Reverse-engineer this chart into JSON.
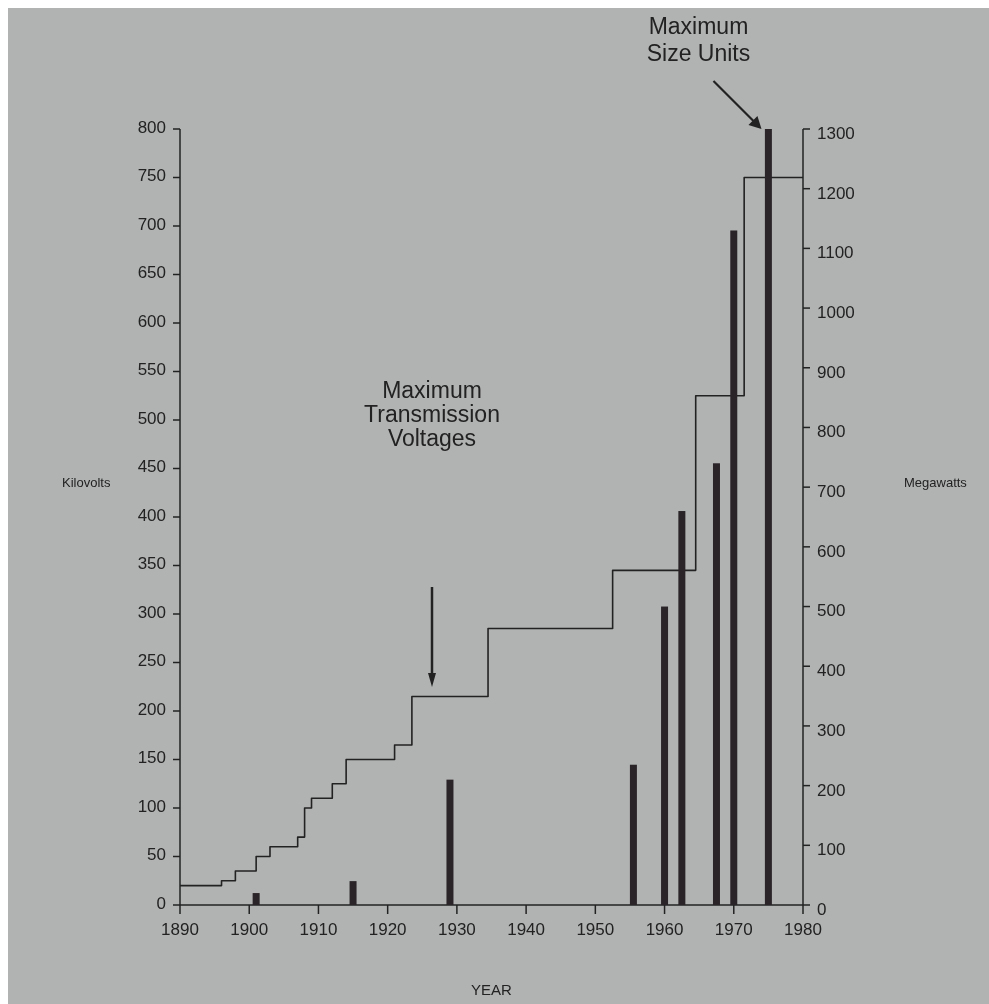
{
  "chart_data": {
    "type": "step",
    "xlabel": "YEAR",
    "ylabel": "Kilovolts",
    "y2label": "Megawatts",
    "xlim": [
      1890,
      1980
    ],
    "xticks": [
      1890,
      1900,
      1910,
      1920,
      1930,
      1940,
      1950,
      1960,
      1970,
      1980
    ],
    "ylim": [
      0,
      800
    ],
    "yticks": [
      0,
      50,
      100,
      150,
      200,
      250,
      300,
      350,
      400,
      450,
      500,
      550,
      600,
      650,
      700,
      750,
      800
    ],
    "y2lim": [
      0,
      1300
    ],
    "y2ticks": [
      0,
      100,
      200,
      300,
      400,
      500,
      600,
      700,
      800,
      900,
      1000,
      1100,
      1200,
      1300
    ],
    "grid": false,
    "series": [
      {
        "color": "#222222",
        "x": [
          1890,
          1896,
          1898,
          1901,
          1903,
          1907,
          1908,
          1909,
          1912,
          1914,
          1921,
          1923.5,
          1934.5,
          1952.5,
          1964.5,
          1971.5,
          1980
        ],
        "values": [
          20,
          25,
          35,
          50,
          60,
          70,
          100,
          110,
          125,
          150,
          165,
          215,
          285,
          345,
          525,
          750,
          750
        ]
      },
      {
        "type": "bar",
        "axis": "y2",
        "color": "#2a2428",
        "x": [
          1901,
          1915,
          1929,
          1955.5,
          1960,
          1962.5,
          1967.5,
          1970,
          1975
        ],
        "values": [
          20,
          40,
          210,
          235,
          500,
          660,
          740,
          1130,
          1300
        ]
      }
    ],
    "annotations": [
      "Maximum Transmission Voltages",
      {
        "text": "Maximum Size Units",
        "x": 1974,
        "y": 800
      }
    ]
  }
}
